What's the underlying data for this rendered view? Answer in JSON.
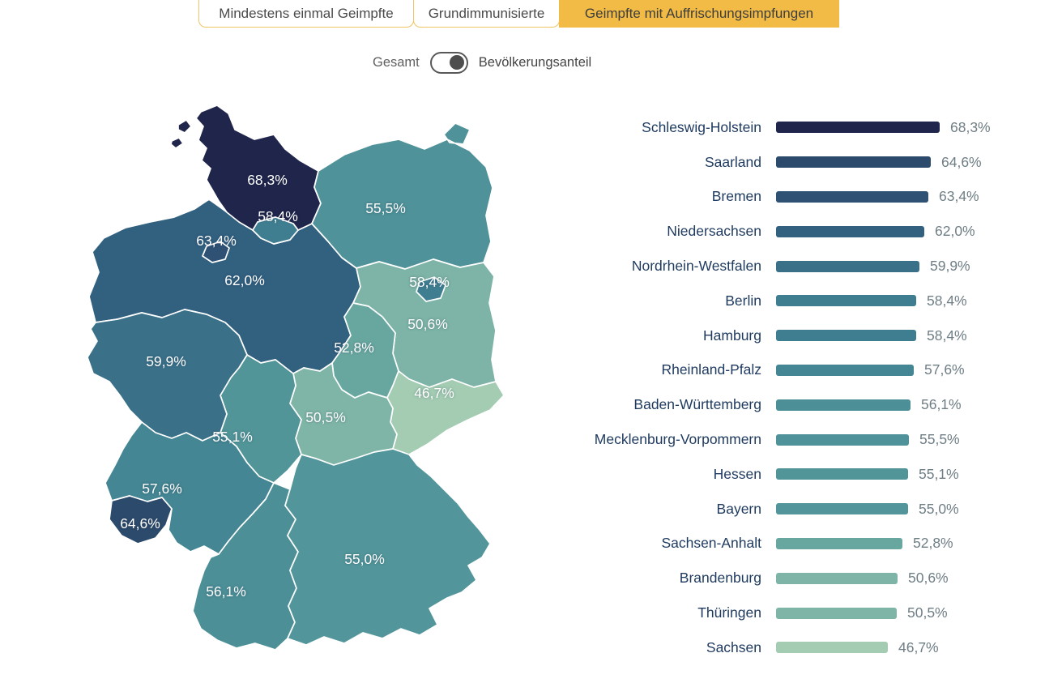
{
  "tabs": [
    {
      "label": "Mindestens einmal Geimpfte",
      "active": false
    },
    {
      "label": "Grundimmunisierte",
      "active": false
    },
    {
      "label": "Geimpfte mit Auffrischungsimpfungen",
      "active": true
    }
  ],
  "tab_colors": {
    "active_bg": "#f2bb45",
    "inactive_border": "#efc565"
  },
  "toggle": {
    "left_label": "Gesamt",
    "right_label": "Bevölkerungsanteil",
    "state": "right"
  },
  "chart_data": {
    "type": "bar",
    "orientation": "horizontal",
    "unit": "%",
    "decimal_separator": ",",
    "xlim": [
      0,
      68.3
    ],
    "legend": "none",
    "grid": false,
    "series": [
      {
        "id": "sh",
        "label": "Schleswig-Holstein",
        "value": 68.3,
        "display": "68,3%",
        "color": "#20254b"
      },
      {
        "id": "sl",
        "label": "Saarland",
        "value": 64.6,
        "display": "64,6%",
        "color": "#2c4a6b"
      },
      {
        "id": "hb",
        "label": "Bremen",
        "value": 63.4,
        "display": "63,4%",
        "color": "#2e5174"
      },
      {
        "id": "ni",
        "label": "Niedersachsen",
        "value": 62.0,
        "display": "62,0%",
        "color": "#32607f"
      },
      {
        "id": "nrw",
        "label": "Nordrhein-Westfalen",
        "value": 59.9,
        "display": "59,9%",
        "color": "#3a7189"
      },
      {
        "id": "be",
        "label": "Berlin",
        "value": 58.4,
        "display": "58,4%",
        "color": "#3f7e91"
      },
      {
        "id": "hh",
        "label": "Hamburg",
        "value": 58.4,
        "display": "58,4%",
        "color": "#3f7e91"
      },
      {
        "id": "rlp",
        "label": "Rheinland-Pfalz",
        "value": 57.6,
        "display": "57,6%",
        "color": "#448693"
      },
      {
        "id": "bw",
        "label": "Baden-Württemberg",
        "value": 56.1,
        "display": "56,1%",
        "color": "#4c8f97"
      },
      {
        "id": "mv",
        "label": "Mecklenburg-Vorpommern",
        "value": 55.5,
        "display": "55,5%",
        "color": "#4f9299"
      },
      {
        "id": "he",
        "label": "Hessen",
        "value": 55.1,
        "display": "55,1%",
        "color": "#519599"
      },
      {
        "id": "by",
        "label": "Bayern",
        "value": 55.0,
        "display": "55,0%",
        "color": "#52969b"
      },
      {
        "id": "st",
        "label": "Sachsen-Anhalt",
        "value": 52.8,
        "display": "52,8%",
        "color": "#68a7a0"
      },
      {
        "id": "bb",
        "label": "Brandenburg",
        "value": 50.6,
        "display": "50,6%",
        "color": "#7db4a7"
      },
      {
        "id": "th",
        "label": "Thüringen",
        "value": 50.5,
        "display": "50,5%",
        "color": "#7eb5a7"
      },
      {
        "id": "sn",
        "label": "Sachsen",
        "value": 46.7,
        "display": "46,7%",
        "color": "#a3ccb3"
      }
    ]
  },
  "map": {
    "type": "choropleth",
    "region": "Deutschland (Bundesländer)",
    "value_labels_source": "chart_data.series",
    "border_color": "#ffffff"
  }
}
